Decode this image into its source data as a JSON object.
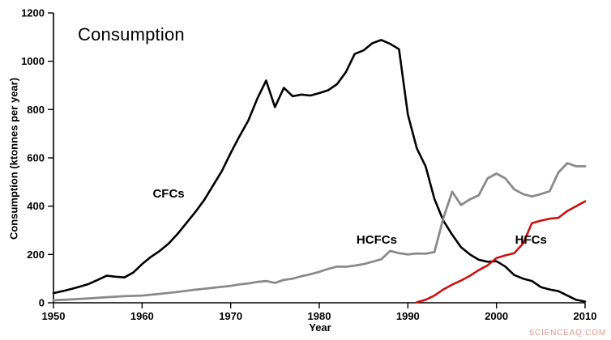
{
  "chart_data": {
    "type": "line",
    "title": "Consumption",
    "xlabel": "Year",
    "ylabel": "Consumption (ktonnes per year)",
    "xlim": [
      1950,
      2010
    ],
    "ylim": [
      0,
      1200
    ],
    "x_ticks": [
      1950,
      1960,
      1970,
      1980,
      1990,
      2000,
      2010
    ],
    "y_ticks": [
      0,
      200,
      400,
      600,
      800,
      1000,
      1200
    ],
    "grid": false,
    "legend": "inline-labels",
    "watermark": {
      "text": "SCIENCEAQ.COM",
      "color": "#e2968e"
    },
    "series": [
      {
        "name": "CFCs",
        "color": "#000000",
        "label_color": "#000000",
        "stroke_width": 2.6,
        "label_pos": {
          "x": 1961.2,
          "y": 452
        },
        "points": [
          [
            1950,
            40
          ],
          [
            1951,
            48
          ],
          [
            1952,
            57
          ],
          [
            1953,
            67
          ],
          [
            1954,
            78
          ],
          [
            1955,
            95
          ],
          [
            1956,
            112
          ],
          [
            1957,
            108
          ],
          [
            1958,
            105
          ],
          [
            1959,
            125
          ],
          [
            1960,
            160
          ],
          [
            1961,
            190
          ],
          [
            1962,
            215
          ],
          [
            1963,
            245
          ],
          [
            1964,
            285
          ],
          [
            1965,
            330
          ],
          [
            1966,
            375
          ],
          [
            1967,
            425
          ],
          [
            1968,
            485
          ],
          [
            1969,
            545
          ],
          [
            1970,
            620
          ],
          [
            1971,
            690
          ],
          [
            1972,
            755
          ],
          [
            1973,
            845
          ],
          [
            1974,
            920
          ],
          [
            1975,
            810
          ],
          [
            1976,
            890
          ],
          [
            1977,
            855
          ],
          [
            1978,
            862
          ],
          [
            1979,
            858
          ],
          [
            1980,
            868
          ],
          [
            1981,
            880
          ],
          [
            1982,
            905
          ],
          [
            1983,
            955
          ],
          [
            1984,
            1030
          ],
          [
            1985,
            1045
          ],
          [
            1986,
            1075
          ],
          [
            1987,
            1088
          ],
          [
            1988,
            1072
          ],
          [
            1989,
            1050
          ],
          [
            1990,
            780
          ],
          [
            1991,
            640
          ],
          [
            1992,
            565
          ],
          [
            1993,
            430
          ],
          [
            1994,
            340
          ],
          [
            1995,
            282
          ],
          [
            1996,
            230
          ],
          [
            1997,
            200
          ],
          [
            1998,
            178
          ],
          [
            1999,
            170
          ],
          [
            2000,
            172
          ],
          [
            2001,
            150
          ],
          [
            2002,
            115
          ],
          [
            2003,
            100
          ],
          [
            2004,
            90
          ],
          [
            2005,
            65
          ],
          [
            2006,
            55
          ],
          [
            2007,
            48
          ],
          [
            2008,
            30
          ],
          [
            2009,
            12
          ],
          [
            2010,
            5
          ]
        ]
      },
      {
        "name": "HCFCs",
        "color": "#8a8a8a",
        "label_color": "#000000",
        "stroke_width": 2.8,
        "label_pos": {
          "x": 1984.2,
          "y": 262
        },
        "points": [
          [
            1950,
            10
          ],
          [
            1952,
            14
          ],
          [
            1954,
            18
          ],
          [
            1956,
            23
          ],
          [
            1958,
            27
          ],
          [
            1960,
            30
          ],
          [
            1962,
            37
          ],
          [
            1964,
            45
          ],
          [
            1966,
            54
          ],
          [
            1968,
            62
          ],
          [
            1970,
            70
          ],
          [
            1971,
            76
          ],
          [
            1972,
            80
          ],
          [
            1973,
            86
          ],
          [
            1974,
            90
          ],
          [
            1975,
            82
          ],
          [
            1976,
            95
          ],
          [
            1977,
            100
          ],
          [
            1978,
            110
          ],
          [
            1979,
            118
          ],
          [
            1980,
            128
          ],
          [
            1981,
            140
          ],
          [
            1982,
            150
          ],
          [
            1983,
            149
          ],
          [
            1984,
            154
          ],
          [
            1985,
            160
          ],
          [
            1986,
            170
          ],
          [
            1987,
            180
          ],
          [
            1988,
            215
          ],
          [
            1989,
            205
          ],
          [
            1990,
            200
          ],
          [
            1991,
            204
          ],
          [
            1992,
            203
          ],
          [
            1993,
            210
          ],
          [
            1994,
            350
          ],
          [
            1995,
            460
          ],
          [
            1996,
            405
          ],
          [
            1997,
            428
          ],
          [
            1998,
            445
          ],
          [
            1999,
            515
          ],
          [
            2000,
            535
          ],
          [
            2001,
            515
          ],
          [
            2002,
            470
          ],
          [
            2003,
            450
          ],
          [
            2004,
            440
          ],
          [
            2005,
            450
          ],
          [
            2006,
            462
          ],
          [
            2007,
            540
          ],
          [
            2008,
            578
          ],
          [
            2009,
            565
          ],
          [
            2010,
            565
          ]
        ]
      },
      {
        "name": "HFCs",
        "color": "#cc1010",
        "label_color": "#000000",
        "stroke_width": 2.6,
        "label_pos": {
          "x": 2002.1,
          "y": 262
        },
        "points": [
          [
            1991,
            2
          ],
          [
            1992,
            12
          ],
          [
            1993,
            30
          ],
          [
            1994,
            55
          ],
          [
            1995,
            75
          ],
          [
            1996,
            92
          ],
          [
            1997,
            112
          ],
          [
            1998,
            135
          ],
          [
            1999,
            155
          ],
          [
            2000,
            185
          ],
          [
            2001,
            196
          ],
          [
            2002,
            205
          ],
          [
            2003,
            245
          ],
          [
            2004,
            330
          ],
          [
            2005,
            340
          ],
          [
            2006,
            348
          ],
          [
            2007,
            352
          ],
          [
            2008,
            380
          ],
          [
            2009,
            400
          ],
          [
            2010,
            420
          ]
        ]
      }
    ]
  }
}
